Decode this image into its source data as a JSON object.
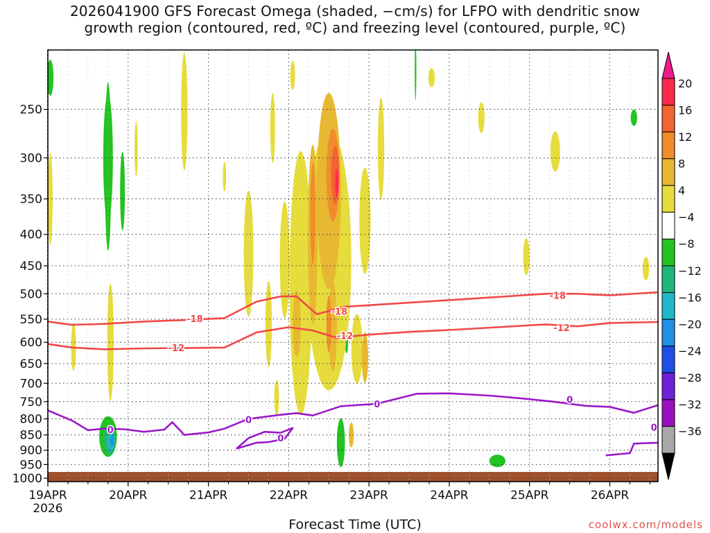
{
  "chart_data": {
    "type": "heatmap",
    "title": "2026041900 GFS Forecast Omega (shaded, −cm/s) for LFPO with dendritic snow\ngrowth region (contoured, red, ºC) and freezing level (contoured, purple, ºC)",
    "xlabel": "Forecast Time (UTC)",
    "ylabel": "",
    "credit": "coolwx.com/models",
    "x_ticks": [
      {
        "label": "19APR",
        "sub": "2026"
      },
      {
        "label": "20APR",
        "sub": ""
      },
      {
        "label": "21APR",
        "sub": ""
      },
      {
        "label": "22APR",
        "sub": ""
      },
      {
        "label": "23APR",
        "sub": ""
      },
      {
        "label": "24APR",
        "sub": ""
      },
      {
        "label": "25APR",
        "sub": ""
      },
      {
        "label": "26APR",
        "sub": ""
      }
    ],
    "y_ticks": [
      250,
      300,
      350,
      400,
      450,
      500,
      550,
      600,
      650,
      700,
      750,
      800,
      850,
      900,
      950,
      1000
    ],
    "ylim_hpa": [
      200,
      1013
    ],
    "x_range_days": [
      0,
      7.6
    ],
    "colorbar": {
      "labels": [
        "20",
        "16",
        "12",
        "8",
        "4",
        "−4",
        "−8",
        "−12",
        "−16",
        "−20",
        "−24",
        "−28",
        "−32",
        "−36"
      ],
      "colors": [
        "#ff2a4a",
        "#f26430",
        "#f08c2a",
        "#e8b830",
        "#e6dc3c",
        "#ffffff",
        "#22c322",
        "#20b87a",
        "#20b8c8",
        "#1e90e6",
        "#1e50e6",
        "#7020d8",
        "#9a10c0",
        "#a8a8a8"
      ],
      "top_color": "#ee1c8c",
      "bottom_color": "#000000"
    },
    "contours": {
      "dgz_minus18": {
        "color": "#f04848",
        "label": "-18",
        "points": [
          [
            0,
            555
          ],
          [
            0.3,
            562
          ],
          [
            0.7,
            560
          ],
          [
            1.2,
            555
          ],
          [
            1.7,
            552
          ],
          [
            2.2,
            548
          ],
          [
            2.6,
            515
          ],
          [
            2.9,
            505
          ],
          [
            3.1,
            505
          ],
          [
            3.35,
            540
          ],
          [
            3.7,
            525
          ],
          [
            4.2,
            520
          ],
          [
            5.0,
            512
          ],
          [
            5.6,
            506
          ],
          [
            6.2,
            500
          ],
          [
            6.6,
            500
          ],
          [
            7.0,
            503
          ],
          [
            7.6,
            497
          ]
        ]
      },
      "dgz_minus12": {
        "color": "#f04848",
        "label": "-12",
        "points": [
          [
            0,
            604
          ],
          [
            0.3,
            612
          ],
          [
            0.7,
            616
          ],
          [
            1.2,
            614
          ],
          [
            1.7,
            613
          ],
          [
            2.2,
            612
          ],
          [
            2.6,
            578
          ],
          [
            3.0,
            567
          ],
          [
            3.3,
            574
          ],
          [
            3.6,
            590
          ],
          [
            4.0,
            583
          ],
          [
            4.5,
            577
          ],
          [
            5.0,
            573
          ],
          [
            5.6,
            567
          ],
          [
            6.2,
            561
          ],
          [
            6.6,
            565
          ],
          [
            7.0,
            558
          ],
          [
            7.6,
            556
          ]
        ]
      },
      "freezing_main": {
        "color": "#9a18c8",
        "label": "0",
        "points": [
          [
            0,
            775
          ],
          [
            0.3,
            805
          ],
          [
            0.5,
            835
          ],
          [
            0.7,
            830
          ],
          [
            0.95,
            832
          ],
          [
            1.2,
            840
          ],
          [
            1.45,
            833
          ],
          [
            1.55,
            810
          ],
          [
            1.7,
            850
          ],
          [
            2.0,
            842
          ],
          [
            2.2,
            830
          ],
          [
            2.5,
            800
          ],
          [
            2.9,
            788
          ],
          [
            3.1,
            783
          ],
          [
            3.3,
            790
          ],
          [
            3.65,
            763
          ],
          [
            4.1,
            756
          ],
          [
            4.6,
            728
          ],
          [
            5.0,
            727
          ],
          [
            5.5,
            733
          ],
          [
            5.9,
            741
          ],
          [
            6.3,
            750
          ],
          [
            6.7,
            762
          ],
          [
            7.0,
            765
          ],
          [
            7.3,
            782
          ],
          [
            7.6,
            760
          ]
        ]
      },
      "freezing_pocket": {
        "color": "#9a18c8",
        "label": "0",
        "points": [
          [
            2.35,
            895
          ],
          [
            2.5,
            860
          ],
          [
            2.7,
            840
          ],
          [
            2.9,
            843
          ],
          [
            3.05,
            828
          ],
          [
            2.95,
            862
          ],
          [
            2.75,
            873
          ],
          [
            2.6,
            875
          ],
          [
            2.35,
            895
          ]
        ]
      },
      "freezing_right": {
        "color": "#9a18c8",
        "label": "0",
        "points": [
          [
            6.95,
            918
          ],
          [
            7.25,
            910
          ],
          [
            7.3,
            878
          ],
          [
            7.6,
            875
          ]
        ]
      }
    },
    "omega_regions": [
      {
        "cls": 6,
        "cx": 0.75,
        "cy": 300,
        "rx": 0.06,
        "ry": 70,
        "rot": 0
      },
      {
        "cls": 6,
        "cx": 0.75,
        "cy": 310,
        "rx": 0.04,
        "ry": 95,
        "rot": 0
      },
      {
        "cls": 6,
        "cx": 0.93,
        "cy": 340,
        "rx": 0.03,
        "ry": 50,
        "rot": 0
      },
      {
        "cls": 6,
        "cx": 0.03,
        "cy": 222,
        "rx": 0.04,
        "ry": 15,
        "rot": 0
      },
      {
        "cls": 6,
        "cx": 4.58,
        "cy": 215,
        "rx": 0.01,
        "ry": 25,
        "rot": 0
      },
      {
        "cls": 6,
        "cx": 7.3,
        "cy": 258,
        "rx": 0.04,
        "ry": 8,
        "rot": 0
      },
      {
        "cls": 6,
        "cx": 3.65,
        "cy": 875,
        "rx": 0.05,
        "ry": 80,
        "rot": 0
      },
      {
        "cls": 6,
        "cx": 3.72,
        "cy": 600,
        "rx": 0.02,
        "ry": 25,
        "rot": 0
      },
      {
        "cls": 6,
        "cx": 5.6,
        "cy": 937,
        "rx": 0.1,
        "ry": 22,
        "rot": 0
      },
      {
        "cls": 6,
        "cx": 0.75,
        "cy": 855,
        "rx": 0.11,
        "ry": 65,
        "rot": 0
      },
      {
        "cls": 7,
        "cx": 0.77,
        "cy": 865,
        "rx": 0.07,
        "ry": 48,
        "rot": 0
      },
      {
        "cls": 8,
        "cx": 0.79,
        "cy": 870,
        "rx": 0.04,
        "ry": 32,
        "rot": 0
      },
      {
        "cls": 9,
        "cx": 0.8,
        "cy": 870,
        "rx": 0.02,
        "ry": 18,
        "rot": 0
      },
      {
        "cls": 4,
        "cx": 0.03,
        "cy": 350,
        "rx": 0.03,
        "ry": 60,
        "rot": 0
      },
      {
        "cls": 4,
        "cx": 0.32,
        "cy": 610,
        "rx": 0.03,
        "ry": 55,
        "rot": 0
      },
      {
        "cls": 4,
        "cx": 0.78,
        "cy": 600,
        "rx": 0.04,
        "ry": 130,
        "rot": 0
      },
      {
        "cls": 4,
        "cx": 1.1,
        "cy": 290,
        "rx": 0.02,
        "ry": 30,
        "rot": 0
      },
      {
        "cls": 4,
        "cx": 1.7,
        "cy": 252,
        "rx": 0.04,
        "ry": 55,
        "rot": 0
      },
      {
        "cls": 4,
        "cx": 2.5,
        "cy": 430,
        "rx": 0.06,
        "ry": 100,
        "rot": 0
      },
      {
        "cls": 4,
        "cx": 2.2,
        "cy": 322,
        "rx": 0.02,
        "ry": 18,
        "rot": 0
      },
      {
        "cls": 4,
        "cx": 2.8,
        "cy": 268,
        "rx": 0.03,
        "ry": 35,
        "rot": 0
      },
      {
        "cls": 4,
        "cx": 2.95,
        "cy": 440,
        "rx": 0.06,
        "ry": 95,
        "rot": 0
      },
      {
        "cls": 4,
        "cx": 2.75,
        "cy": 560,
        "rx": 0.04,
        "ry": 90,
        "rot": 0
      },
      {
        "cls": 4,
        "cx": 3.15,
        "cy": 480,
        "rx": 0.14,
        "ry": 220,
        "rot": 0
      },
      {
        "cls": 4,
        "cx": 3.5,
        "cy": 440,
        "rx": 0.28,
        "ry": 200,
        "rot": 0
      },
      {
        "cls": 4,
        "cx": 3.95,
        "cy": 380,
        "rx": 0.07,
        "ry": 75,
        "rot": 0
      },
      {
        "cls": 4,
        "cx": 4.15,
        "cy": 290,
        "rx": 0.04,
        "ry": 55,
        "rot": 0
      },
      {
        "cls": 4,
        "cx": 3.85,
        "cy": 615,
        "rx": 0.07,
        "ry": 80,
        "rot": 0
      },
      {
        "cls": 4,
        "cx": 2.85,
        "cy": 740,
        "rx": 0.03,
        "ry": 50,
        "rot": 0
      },
      {
        "cls": 4,
        "cx": 4.78,
        "cy": 222,
        "rx": 0.04,
        "ry": 8,
        "rot": 0
      },
      {
        "cls": 4,
        "cx": 5.4,
        "cy": 258,
        "rx": 0.04,
        "ry": 15,
        "rot": 0
      },
      {
        "cls": 4,
        "cx": 6.32,
        "cy": 293,
        "rx": 0.06,
        "ry": 22,
        "rot": 0
      },
      {
        "cls": 4,
        "cx": 5.96,
        "cy": 435,
        "rx": 0.04,
        "ry": 30,
        "rot": 0
      },
      {
        "cls": 4,
        "cx": 7.45,
        "cy": 455,
        "rx": 0.04,
        "ry": 20,
        "rot": 0
      },
      {
        "cls": 4,
        "cx": 3.05,
        "cy": 220,
        "rx": 0.03,
        "ry": 12,
        "rot": 0
      },
      {
        "cls": 3,
        "cx": 3.5,
        "cy": 340,
        "rx": 0.15,
        "ry": 120,
        "rot": 0
      },
      {
        "cls": 3,
        "cx": 3.3,
        "cy": 400,
        "rx": 0.06,
        "ry": 130,
        "rot": 0
      },
      {
        "cls": 3,
        "cx": 3.55,
        "cy": 565,
        "rx": 0.05,
        "ry": 95,
        "rot": 0
      },
      {
        "cls": 3,
        "cx": 3.95,
        "cy": 635,
        "rx": 0.04,
        "ry": 60,
        "rot": 0
      },
      {
        "cls": 3,
        "cx": 3.1,
        "cy": 560,
        "rx": 0.05,
        "ry": 70,
        "rot": 0
      },
      {
        "cls": 3,
        "cx": 3.78,
        "cy": 850,
        "rx": 0.03,
        "ry": 40,
        "rot": 0
      },
      {
        "cls": 2,
        "cx": 3.55,
        "cy": 320,
        "rx": 0.08,
        "ry": 55,
        "rot": 0
      },
      {
        "cls": 2,
        "cx": 3.3,
        "cy": 370,
        "rx": 0.03,
        "ry": 70,
        "rot": 0
      },
      {
        "cls": 2,
        "cx": 3.5,
        "cy": 560,
        "rx": 0.03,
        "ry": 60,
        "rot": 0
      },
      {
        "cls": 1,
        "cx": 3.58,
        "cy": 320,
        "rx": 0.05,
        "ry": 35,
        "rot": 0
      },
      {
        "cls": 0,
        "cx": 3.6,
        "cy": 330,
        "rx": 0.02,
        "ry": 18,
        "rot": 0
      }
    ],
    "ground_color": "#a0522d"
  }
}
